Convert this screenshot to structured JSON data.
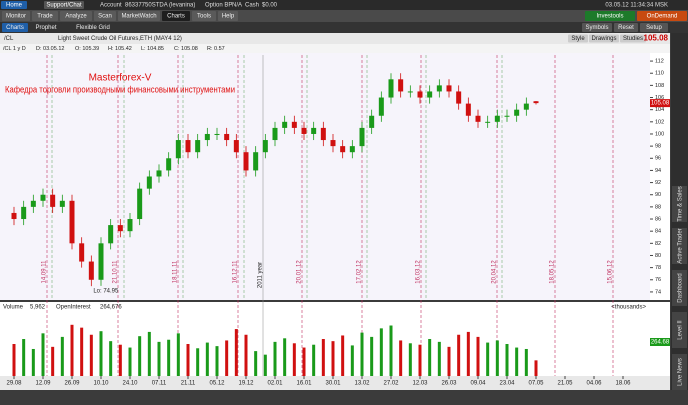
{
  "top_bar": {
    "home": "Home",
    "support": "Support/Chat",
    "account_label": "Account",
    "account": "86337750STDA (levanina)",
    "option_bp_label": "Option BP",
    "option_bp": "N/A",
    "cash_label": "Cash",
    "cash": "$0.00",
    "clock": "03.05.12 11:34:34 MSK"
  },
  "tabs": [
    "Monitor",
    "Trade",
    "Analyze",
    "Scan",
    "MarketWatch",
    "Charts",
    "Tools",
    "Help"
  ],
  "brand_buttons": [
    "Investools",
    "OnDemand"
  ],
  "subtabs": [
    "Charts",
    "Prophet",
    "Flexible Grid"
  ],
  "subtab_buttons": [
    "Symbols",
    "Reset",
    "Setup"
  ],
  "symbol_bar": {
    "symbol": "/CL",
    "description": "Light Sweet Crude Oil Futures,ETH (MAY4 12)",
    "buttons": [
      "Style",
      "Drawings",
      "Studies"
    ],
    "last": "105.08"
  },
  "info": [
    "/CL 1 y D",
    "D: 03.05.12",
    "O: 105.39",
    "H: 105.42",
    "L: 104.85",
    "C: 105.08",
    "R: 0.57"
  ],
  "sidebar": [
    "Live News",
    "Level II",
    "Dashboard",
    "Active Trader",
    "Time & Sales"
  ],
  "overlay": {
    "brand": "Masterforex-V",
    "text": "Кафедра торговли производными финансовыми инструментами"
  },
  "chart_data": {
    "type": "candlestick",
    "open": [
      87,
      86,
      88,
      89,
      90,
      88,
      89,
      82,
      79,
      76,
      82,
      85,
      84,
      86,
      91,
      93,
      94,
      96,
      99,
      97,
      99,
      100,
      100,
      99,
      97,
      94,
      97,
      99,
      101,
      102,
      101,
      100,
      101,
      99,
      98,
      97,
      98,
      101,
      103,
      106,
      109,
      107,
      107,
      106,
      107,
      108,
      107,
      105,
      103,
      102,
      102,
      103,
      103,
      104,
      105.39
    ],
    "high": [
      88,
      89,
      90,
      91,
      91,
      90,
      90,
      83,
      80,
      83,
      86,
      86,
      87,
      92,
      94,
      95,
      97,
      100,
      100,
      100,
      101,
      101,
      101,
      100,
      98,
      98,
      100,
      102,
      103,
      103,
      102,
      102,
      102,
      100,
      99,
      99,
      102,
      104,
      107,
      110,
      110,
      108,
      108,
      108,
      109,
      109,
      108,
      106,
      104,
      103,
      104,
      104,
      105,
      106,
      105.42
    ],
    "low": [
      85,
      85,
      87,
      88,
      87,
      87,
      81,
      78,
      74.95,
      75,
      81,
      83,
      83,
      85,
      90,
      92,
      93,
      95,
      96,
      96,
      98,
      99,
      98,
      96,
      93,
      93,
      96,
      98,
      100,
      100,
      99,
      99,
      98,
      97,
      96,
      96,
      97,
      100,
      102,
      105,
      106,
      106,
      105,
      105,
      106,
      106,
      104,
      102,
      101,
      101,
      101,
      102,
      102,
      103,
      104.85
    ],
    "close": [
      86,
      88,
      89,
      90,
      88,
      89,
      82,
      79,
      76,
      82,
      85,
      84,
      86,
      91,
      93,
      94,
      96,
      99,
      97,
      99,
      100,
      100,
      99,
      97,
      94,
      97,
      99,
      101,
      102,
      101,
      100,
      101,
      99,
      98,
      97,
      98,
      101,
      103,
      106,
      109,
      107,
      107,
      106,
      107,
      108,
      107,
      105,
      103,
      102,
      102,
      103,
      103,
      104,
      105,
      105.08
    ],
    "ylim": [
      73,
      113
    ],
    "yticks": [
      74,
      76,
      78,
      80,
      82,
      84,
      86,
      88,
      90,
      92,
      94,
      96,
      98,
      100,
      102,
      104,
      106,
      108,
      110,
      112
    ],
    "xticks": [
      "29.08",
      "12.09",
      "26.09",
      "10.10",
      "24.10",
      "07.11",
      "21.11",
      "05.12",
      "19.12",
      "02.01",
      "16.01",
      "30.01",
      "13.02",
      "27.02",
      "12.03",
      "26.03",
      "09.04",
      "23.04",
      "07.05",
      "21.05",
      "04.06",
      "18.06"
    ],
    "up_color": "#1a9a1a",
    "down_color": "#d01010",
    "low_label": "Lo: 74.95",
    "year_label": "2011 year",
    "expirations": [
      "14.09.11",
      "21.10.11",
      "18.11.11",
      "16.12.11",
      "20.01.12",
      "17.02.12",
      "16.03.12",
      "20.04.12",
      "18.05.12",
      "15.06.12"
    ],
    "last_badge": "105.08"
  },
  "volume": {
    "title": "Volume",
    "value": "5,962",
    "oi_title": "OpenInterest",
    "oi_value": "264,676",
    "units": "<thousands>",
    "badge": "264.68",
    "ylim": [
      0,
      90
    ],
    "values": [
      45,
      52,
      38,
      60,
      41,
      55,
      72,
      68,
      58,
      63,
      49,
      44,
      40,
      56,
      62,
      48,
      51,
      60,
      45,
      39,
      47,
      42,
      50,
      66,
      58,
      35,
      30,
      48,
      53,
      46,
      40,
      44,
      52,
      49,
      57,
      43,
      61,
      55,
      67,
      71,
      50,
      46,
      44,
      52,
      48,
      41,
      58,
      62,
      55,
      47,
      50,
      45,
      40,
      38,
      22
    ]
  }
}
